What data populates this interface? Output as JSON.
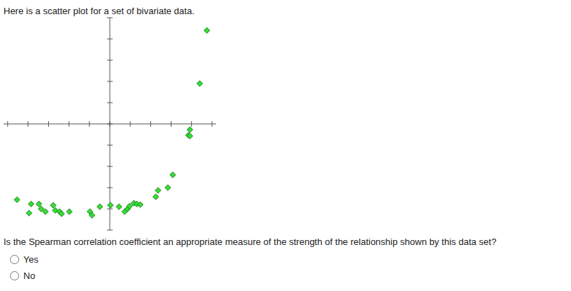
{
  "intro": "Here is a scatter plot for a set of bivariate data.",
  "question": "Is the Spearman correlation coefficient an appropriate measure of the strength of the relationship shown by this data set?",
  "options": [
    "Yes",
    "No"
  ],
  "chart_data": {
    "type": "scatter",
    "x": [
      -4.54,
      -3.95,
      -3.85,
      -3.47,
      -3.36,
      -3.15,
      -2.77,
      -2.67,
      -2.46,
      -2.36,
      -1.98,
      -0.97,
      -0.87,
      -0.49,
      0.03,
      0.45,
      0.73,
      0.87,
      0.97,
      1.18,
      1.32,
      1.49,
      2.25,
      2.36,
      2.84,
      3.08,
      3.85,
      3.92,
      3.92,
      4.4,
      4.75
    ],
    "values": [
      -3.57,
      -4.2,
      -3.77,
      -3.77,
      -4.0,
      -4.13,
      -3.83,
      -4.07,
      -4.13,
      -4.23,
      -4.13,
      -4.13,
      -4.3,
      -3.9,
      -3.83,
      -3.9,
      -4.13,
      -4.0,
      -3.87,
      -3.73,
      -3.77,
      -3.8,
      -3.43,
      -3.13,
      -3.0,
      -2.4,
      -0.53,
      -0.27,
      -0.57,
      1.9,
      4.4
    ],
    "color": "#33dd33",
    "marker": "diamond",
    "xlim": [
      -5.2,
      5.2
    ],
    "xticks": [
      -5,
      -4,
      -3,
      -2,
      -1,
      0,
      1,
      2,
      3,
      4,
      5
    ],
    "ylim": [
      -5,
      5
    ],
    "yticks": [
      -5,
      -4,
      -3,
      -2,
      -1,
      0,
      1,
      2,
      3,
      4,
      5
    ],
    "grid": false,
    "tick_labels": false
  }
}
